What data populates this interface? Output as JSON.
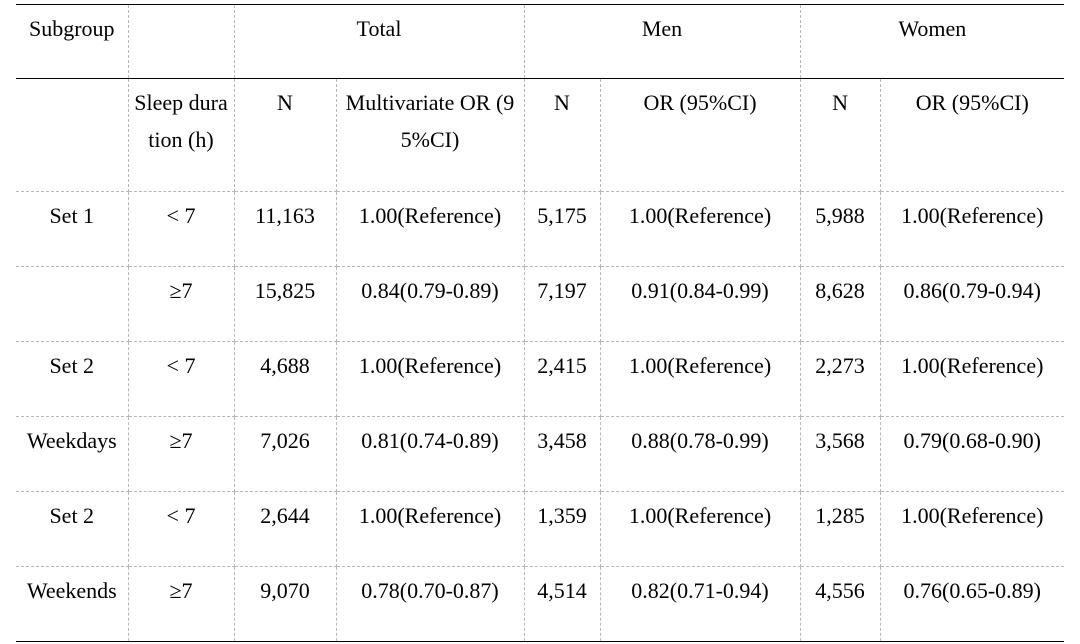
{
  "header": {
    "subgroup": "Subgroup",
    "total": "Total",
    "men": "Men",
    "women": "Women",
    "sleep_duration": "Sleep duration (h)",
    "n_total": "N",
    "or_total": "Multivariate OR (95%CI)",
    "n_men": "N",
    "or_men": "OR (95%CI)",
    "n_women": "N",
    "or_women": "OR (95%CI)"
  },
  "rows": [
    {
      "subgroup": "Set 1",
      "sleep": "< 7",
      "n_total": "11,163",
      "or_total": "1.00(Reference)",
      "n_men": "5,175",
      "or_men": "1.00(Reference)",
      "n_women": "5,988",
      "or_women": "1.00(Reference)"
    },
    {
      "subgroup": "",
      "sleep": "≥7",
      "n_total": "15,825",
      "or_total": "0.84(0.79-0.89)",
      "n_men": "7,197",
      "or_men": "0.91(0.84-0.99)",
      "n_women": "8,628",
      "or_women": "0.86(0.79-0.94)"
    },
    {
      "subgroup": "Set 2",
      "sleep": "< 7",
      "n_total": "4,688",
      "or_total": "1.00(Reference)",
      "n_men": "2,415",
      "or_men": "1.00(Reference)",
      "n_women": "2,273",
      "or_women": "1.00(Reference)"
    },
    {
      "subgroup": "Weekdays",
      "sleep": "≥7",
      "n_total": "7,026",
      "or_total": "0.81(0.74-0.89)",
      "n_men": "3,458",
      "or_men": "0.88(0.78-0.99)",
      "n_women": "3,568",
      "or_women": "0.79(0.68-0.90)"
    },
    {
      "subgroup": "Set 2",
      "sleep": "< 7",
      "n_total": "2,644",
      "or_total": "1.00(Reference)",
      "n_men": "1,359",
      "or_men": "1.00(Reference)",
      "n_women": "1,285",
      "or_women": "1.00(Reference)"
    },
    {
      "subgroup": "Weekends",
      "sleep": "≥7",
      "n_total": "9,070",
      "or_total": "0.78(0.70-0.87)",
      "n_men": "4,514",
      "or_men": "0.82(0.71-0.94)",
      "n_women": "4,556",
      "or_women": "0.76(0.65-0.89)"
    }
  ]
}
